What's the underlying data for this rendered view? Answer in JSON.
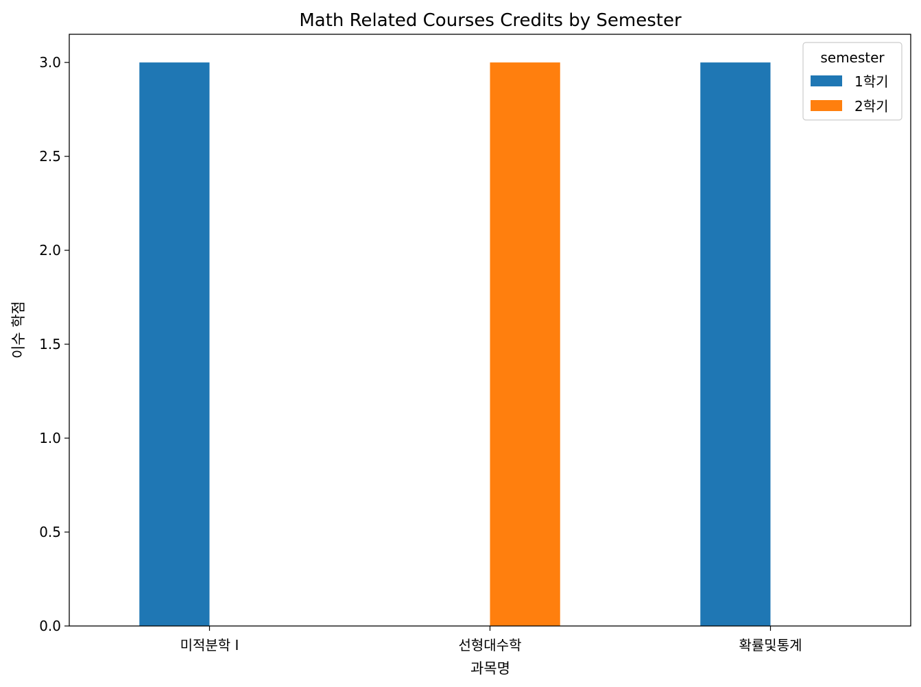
{
  "chart_data": {
    "type": "bar",
    "title": "Math Related Courses Credits by Semester",
    "xlabel": "과목명",
    "ylabel": "이수 학점",
    "categories": [
      "미적분학 I",
      "선형대수학",
      "확률및통계"
    ],
    "series": [
      {
        "name": "1학기",
        "color": "#1f77b4",
        "values": [
          3,
          0,
          3
        ]
      },
      {
        "name": "2학기",
        "color": "#ff7f0e",
        "values": [
          0,
          3,
          0
        ]
      }
    ],
    "ylim": [
      0,
      3.15
    ],
    "yticks": [
      0.0,
      0.5,
      1.0,
      1.5,
      2.0,
      2.5,
      3.0
    ],
    "ytick_labels": [
      "0.0",
      "0.5",
      "1.0",
      "1.5",
      "2.0",
      "2.5",
      "3.0"
    ],
    "legend": {
      "title": "semester",
      "placement": "top-right"
    },
    "grid": false
  }
}
